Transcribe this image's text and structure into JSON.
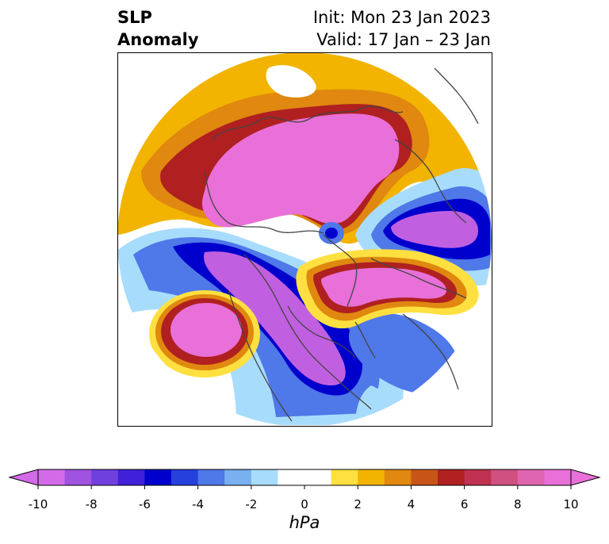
{
  "title": {
    "left_line1": "SLP",
    "left_line2": "Anomaly",
    "init": "Init: Mon 23 Jan 2023",
    "valid": "Valid: 17 Jan – 23 Jan"
  },
  "colorbar": {
    "units": "hPa",
    "min": -10,
    "max": 10,
    "ticks": [
      "-10",
      "-8",
      "-6",
      "-4",
      "-2",
      "0",
      "2",
      "4",
      "6",
      "8",
      "10"
    ],
    "colors": [
      "#d36be8",
      "#a052e0",
      "#7040de",
      "#4020d8",
      "#0000cc",
      "#2640dc",
      "#4f78e8",
      "#78b0f0",
      "#a8dcfc",
      "#ffffff",
      "#ffffff",
      "#ffe040",
      "#f2b400",
      "#e08810",
      "#c85518",
      "#b02020",
      "#c03050",
      "#d05080",
      "#e065b0",
      "#e870d8"
    ],
    "extend_min_color": "#d36be8",
    "extend_max_color": "#e870d8"
  },
  "map_colors": {
    "strong_high": "#e870d8",
    "high_red": "#b02020",
    "high_orange": "#e08810",
    "high_yellow": "#f2b400",
    "light_yellow": "#ffe040",
    "low_purple": "#c060e0",
    "low_deep_blue": "#0000cc",
    "low_blue": "#4f78e8",
    "low_light_blue": "#a8dcfc",
    "coast": "#444444"
  }
}
